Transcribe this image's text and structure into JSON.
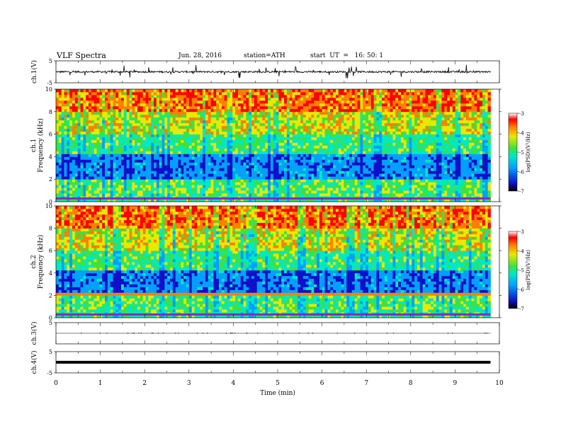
{
  "header": {
    "title": "VLF Spectra",
    "date": "Jun. 28, 2016",
    "station": "station=ATH",
    "start": "start  UT  =   16: 50: 1"
  },
  "chart_data": [
    {
      "type": "line",
      "panel": "ch.1 waveform",
      "ylabel": "ch.1(V)",
      "ylim": [
        -5,
        5
      ],
      "yticks": [
        "5",
        "-5"
      ],
      "x_range_min": [
        0,
        9.8
      ],
      "approx_mean": 0,
      "approx_amplitude": 1.5
    },
    {
      "type": "heatmap",
      "panel": "ch.1 spectrogram",
      "ylabel": "ch.1\nFrequency (kHz)",
      "ylabel_lines": [
        "ch.1",
        "Frequency (kHz)"
      ],
      "ylim": [
        0,
        10
      ],
      "yticks": [
        "0",
        "2",
        "4",
        "6",
        "8",
        "10"
      ],
      "x_range_min": [
        0,
        9.8
      ],
      "colorbar": {
        "label": "log(PSD)(V²/Hz)",
        "range": [
          -7,
          -3
        ],
        "ticks": [
          "-3",
          "-4",
          "-5",
          "-6",
          "-7"
        ]
      }
    },
    {
      "type": "heatmap",
      "panel": "ch.2 spectrogram",
      "ylabel_lines": [
        "ch.2",
        "Frequency (kHz)"
      ],
      "ylim": [
        0,
        10
      ],
      "yticks": [
        "0",
        "2",
        "4",
        "6",
        "8",
        "10"
      ],
      "x_range_min": [
        0,
        9.8
      ],
      "colorbar": {
        "label": "log(PSD)(V²/Hz)",
        "range": [
          -7,
          -3
        ],
        "ticks": [
          "-3",
          "-4",
          "-5",
          "-6",
          "-7"
        ]
      }
    },
    {
      "type": "line",
      "panel": "ch.3 waveform",
      "ylabel": "ch.3(V)",
      "ylim": [
        -5,
        5
      ],
      "yticks": [
        "5"
      ],
      "x_range_min": [
        0,
        9.8
      ],
      "approx_mean": 0
    },
    {
      "type": "line",
      "panel": "ch.4 waveform",
      "ylabel": "ch.4(V)",
      "ylim": [
        -5,
        5
      ],
      "yticks": [
        "5",
        "-5"
      ],
      "x_range_min": [
        0,
        9.8
      ],
      "approx_mean": 0
    }
  ],
  "xaxis": {
    "label": "Time  (min)",
    "ticks": [
      "0",
      "1",
      "2",
      "3",
      "4",
      "5",
      "6",
      "7",
      "8",
      "9",
      "10"
    ],
    "range": [
      0,
      10
    ]
  },
  "colors": {
    "colormap": [
      "#000000",
      "#1010c8",
      "#00a0ff",
      "#00e8c0",
      "#40e040",
      "#e8e800",
      "#ff8000",
      "#ff0000",
      "#ffffff"
    ]
  }
}
